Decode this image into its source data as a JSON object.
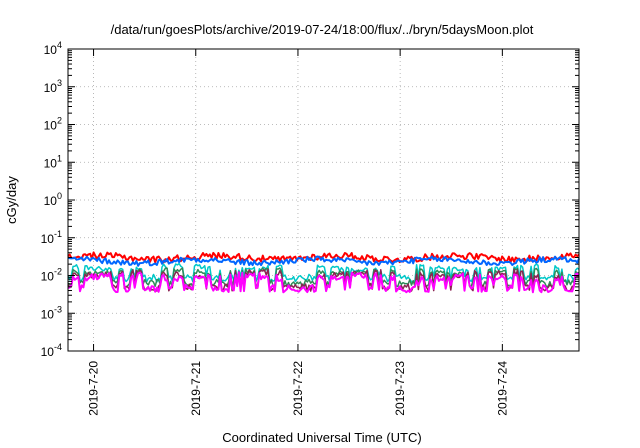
{
  "chart_data": {
    "type": "line",
    "title": "/data/run/goesPlots/archive/2019-07-24/18:00/flux/../bryn/5daysMoon.plot",
    "xlabel": "Coordinated Universal Time (UTC)",
    "ylabel": "cGy/day",
    "yscale": "log",
    "ylim": [
      0.0001,
      10000
    ],
    "xlim": [
      "2019-07-19T18:00",
      "2019-07-24T18:00"
    ],
    "grid": true,
    "y_ticks": [
      {
        "value": 0.0001,
        "base": "10",
        "exp": "-4"
      },
      {
        "value": 0.001,
        "base": "10",
        "exp": "-3"
      },
      {
        "value": 0.01,
        "base": "10",
        "exp": "-2"
      },
      {
        "value": 0.1,
        "base": "10",
        "exp": "-1"
      },
      {
        "value": 1,
        "base": "10",
        "exp": "0"
      },
      {
        "value": 10,
        "base": "10",
        "exp": "1"
      },
      {
        "value": 100,
        "base": "10",
        "exp": "2"
      },
      {
        "value": 1000,
        "base": "10",
        "exp": "3"
      },
      {
        "value": 10000,
        "base": "10",
        "exp": "4"
      }
    ],
    "x_ticks": [
      {
        "value": "2019-07-20T00:00",
        "label": "2019-7-20"
      },
      {
        "value": "2019-07-21T00:00",
        "label": "2019-7-21"
      },
      {
        "value": "2019-07-22T00:00",
        "label": "2019-7-22"
      },
      {
        "value": "2019-07-23T00:00",
        "label": "2019-7-23"
      },
      {
        "value": "2019-07-24T00:00",
        "label": "2019-7-24"
      }
    ],
    "series": [
      {
        "color": "#ff0000",
        "base": 0.03,
        "noise": 0.35,
        "dips": false,
        "width": 2
      },
      {
        "color": "#0066ff",
        "base": 0.024,
        "noise": 0.3,
        "dips": false,
        "width": 2
      },
      {
        "color": "#00c8c8",
        "base": 0.016,
        "noise": 0.25,
        "dips": true,
        "dipLevel": 0.0085,
        "width": 1.5
      },
      {
        "color": "#2e8b57",
        "base": 0.013,
        "noise": 0.25,
        "dips": true,
        "dipLevel": 0.0062,
        "width": 1.5
      },
      {
        "color": "#8b2252",
        "base": 0.011,
        "noise": 0.3,
        "dips": true,
        "dipLevel": 0.0048,
        "width": 1.5
      },
      {
        "color": "#ff00ff",
        "base": 0.009,
        "noise": 0.35,
        "dips": true,
        "dipLevel": 0.0045,
        "width": 2
      }
    ]
  }
}
